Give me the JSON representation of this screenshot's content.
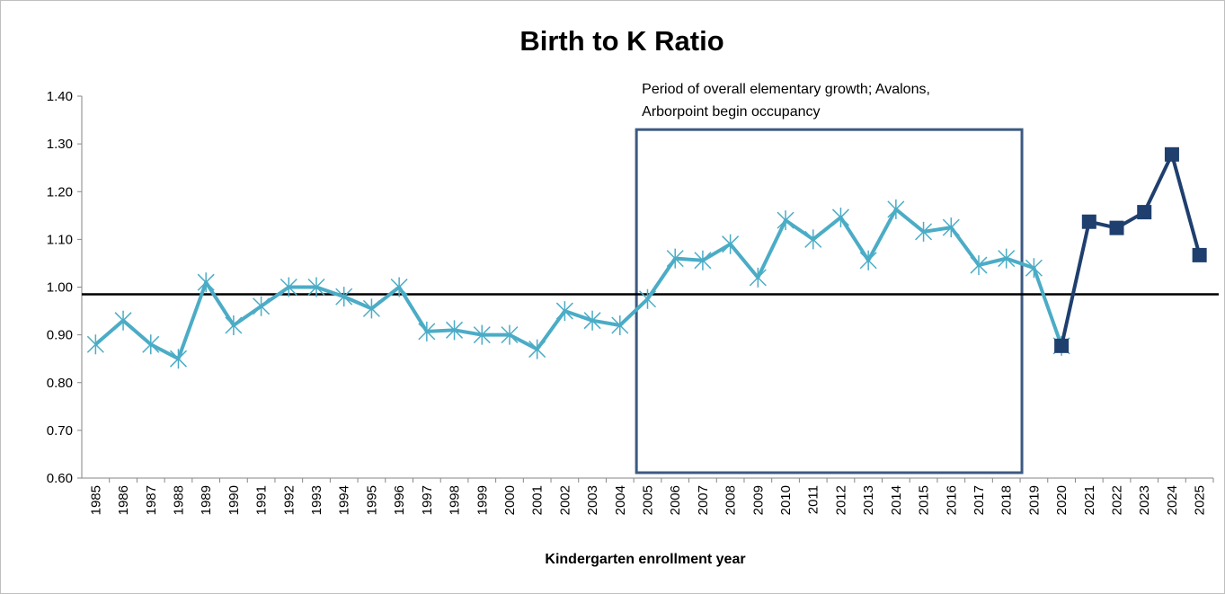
{
  "chart_data": {
    "type": "line",
    "title": "Birth to K Ratio",
    "x_label": "Kindergarten enrollment year",
    "categories": [
      "1985",
      "1986",
      "1987",
      "1988",
      "1989",
      "1990",
      "1991",
      "1992",
      "1993",
      "1994",
      "1995",
      "1996",
      "1997",
      "1998",
      "1999",
      "2000",
      "2001",
      "2002",
      "2003",
      "2004",
      "2005",
      "2006",
      "2007",
      "2008",
      "2009",
      "2010",
      "2011",
      "2012",
      "2013",
      "2014",
      "2015",
      "2016",
      "2017",
      "2018",
      "2019",
      "2020",
      "2021",
      "2022",
      "2023",
      "2024",
      "2025"
    ],
    "series": [
      {
        "color": "#4bacc6",
        "marker": "asterisk",
        "values": [
          0.88,
          0.93,
          0.88,
          0.85,
          1.01,
          0.92,
          0.96,
          1.0,
          1.0,
          0.98,
          0.955,
          1.0,
          0.907,
          0.91,
          0.9,
          0.9,
          0.87,
          0.95,
          0.93,
          0.92,
          0.975,
          1.06,
          1.056,
          1.09,
          1.02,
          1.14,
          1.1,
          1.146,
          1.056,
          1.163,
          1.116,
          1.125,
          1.046,
          1.06,
          1.04,
          0.877,
          null,
          null,
          null,
          null,
          null
        ]
      },
      {
        "color": "#1f3f6e",
        "marker": "square",
        "values": [
          null,
          null,
          null,
          null,
          null,
          null,
          null,
          null,
          null,
          null,
          null,
          null,
          null,
          null,
          null,
          null,
          null,
          null,
          null,
          null,
          null,
          null,
          null,
          null,
          null,
          null,
          null,
          null,
          null,
          null,
          null,
          null,
          null,
          null,
          null,
          0.877,
          1.137,
          1.124,
          1.157,
          1.278,
          1.067
        ]
      }
    ],
    "ylim": [
      0.6,
      1.4
    ],
    "yticks": [
      {
        "value": 0.6,
        "label": "0.60"
      },
      {
        "value": 0.7,
        "label": "0.70"
      },
      {
        "value": 0.8,
        "label": "0.80"
      },
      {
        "value": 0.9,
        "label": "0.90"
      },
      {
        "value": 1.0,
        "label": "1.00"
      },
      {
        "value": 1.1,
        "label": "1.10"
      },
      {
        "value": 1.2,
        "label": "1.20"
      },
      {
        "value": 1.3,
        "label": "1.30"
      },
      {
        "value": 1.4,
        "label": "1.40"
      }
    ],
    "reference_line": 0.985,
    "highlight": {
      "from": "2005",
      "to": "2018",
      "top": 1.33,
      "color": "#3c5a82",
      "text": [
        "Period of overall elementary growth; Avalons,",
        "Arborpoint begin occupancy"
      ]
    }
  }
}
